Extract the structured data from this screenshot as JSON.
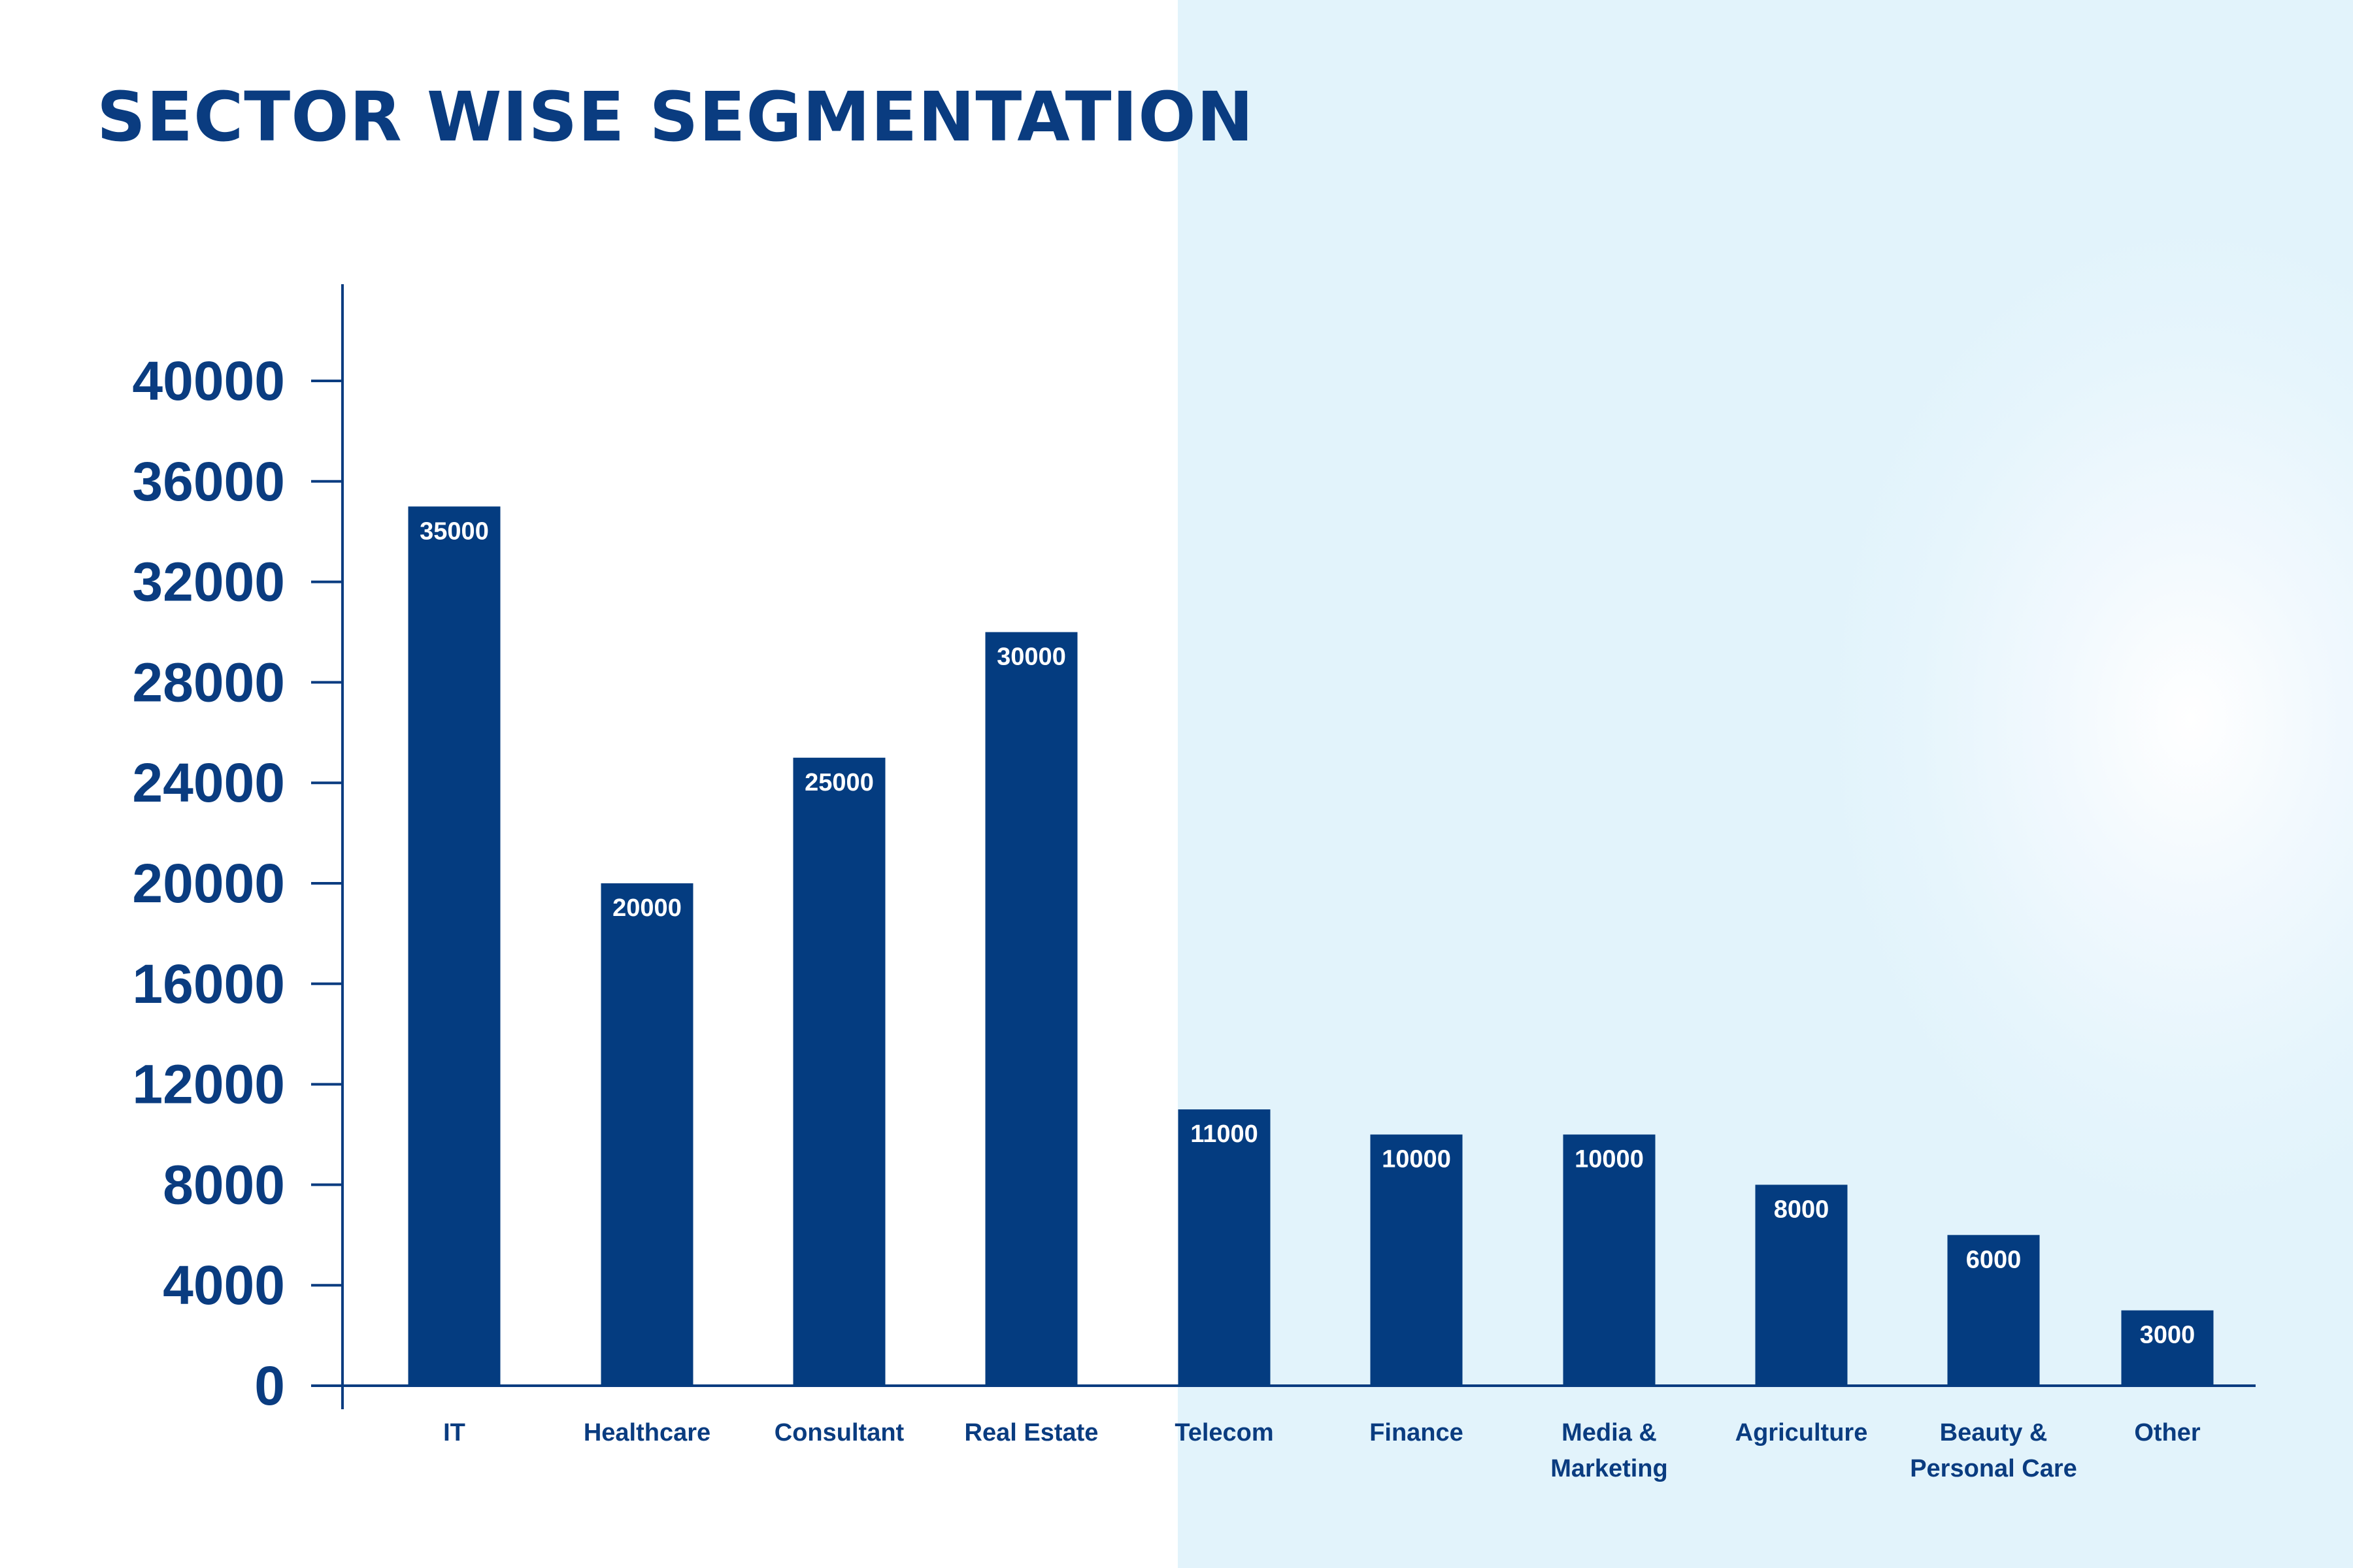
{
  "title": "SECTOR WISE SEGMENTATION",
  "colors": {
    "bar": "#043c80",
    "text": "#0a3c80",
    "axis": "#0a3c80",
    "panel_bg": "#e2f3fb"
  },
  "chart_data": {
    "type": "bar",
    "title": "SECTOR WISE SEGMENTATION",
    "categories": [
      [
        "IT"
      ],
      [
        "Healthcare"
      ],
      [
        "Consultant"
      ],
      [
        "Real Estate"
      ],
      [
        "Telecom"
      ],
      [
        "Finance"
      ],
      [
        "Media &",
        "Marketing"
      ],
      [
        "Agriculture"
      ],
      [
        "Beauty &",
        "Personal Care"
      ],
      [
        "Other"
      ]
    ],
    "values": [
      35000,
      20000,
      25000,
      30000,
      11000,
      10000,
      10000,
      8000,
      6000,
      3000
    ],
    "data_labels": [
      "35000",
      "20000",
      "25000",
      "30000",
      "11000",
      "10000",
      "10000",
      "8000",
      "6000",
      "3000"
    ],
    "y_ticks": [
      0,
      4000,
      8000,
      12000,
      16000,
      20000,
      24000,
      28000,
      32000,
      36000,
      40000
    ],
    "ylim": [
      0,
      40000
    ],
    "xlabel": "",
    "ylabel": "",
    "grid": false,
    "legend": "none"
  }
}
